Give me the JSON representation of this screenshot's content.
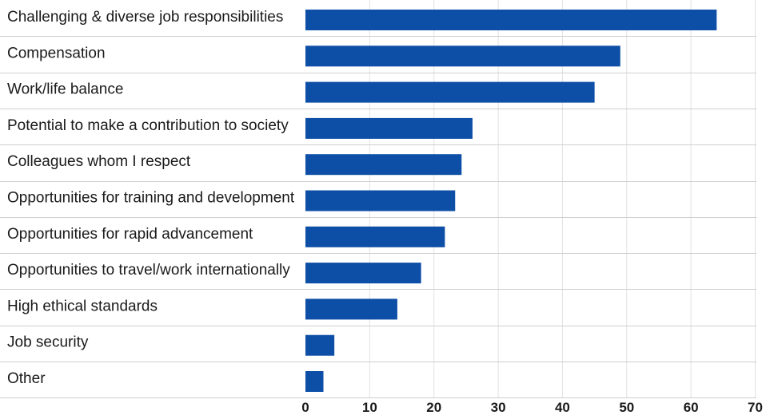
{
  "chart_data": {
    "type": "bar",
    "orientation": "horizontal",
    "title": "",
    "xlabel": "",
    "ylabel": "",
    "categories": [
      "Challenging & diverse job responsibilities",
      "Compensation",
      "Work/life balance",
      "Potential to make a contribution to society",
      "Colleagues whom I respect",
      "Opportunities for training and development",
      "Opportunities for rapid advancement",
      "Opportunities to travel/work internationally",
      "High ethical standards",
      "Job security",
      "Other"
    ],
    "values": [
      64,
      49,
      45,
      26,
      24.3,
      23.3,
      21.7,
      18,
      14.3,
      4.5,
      2.8
    ],
    "xlim": [
      0,
      70
    ],
    "xticks": [
      "0",
      "10",
      "20",
      "30",
      "40",
      "50",
      "60",
      "70"
    ],
    "grid": "vertical",
    "bar_color": "#0d4ea6"
  }
}
